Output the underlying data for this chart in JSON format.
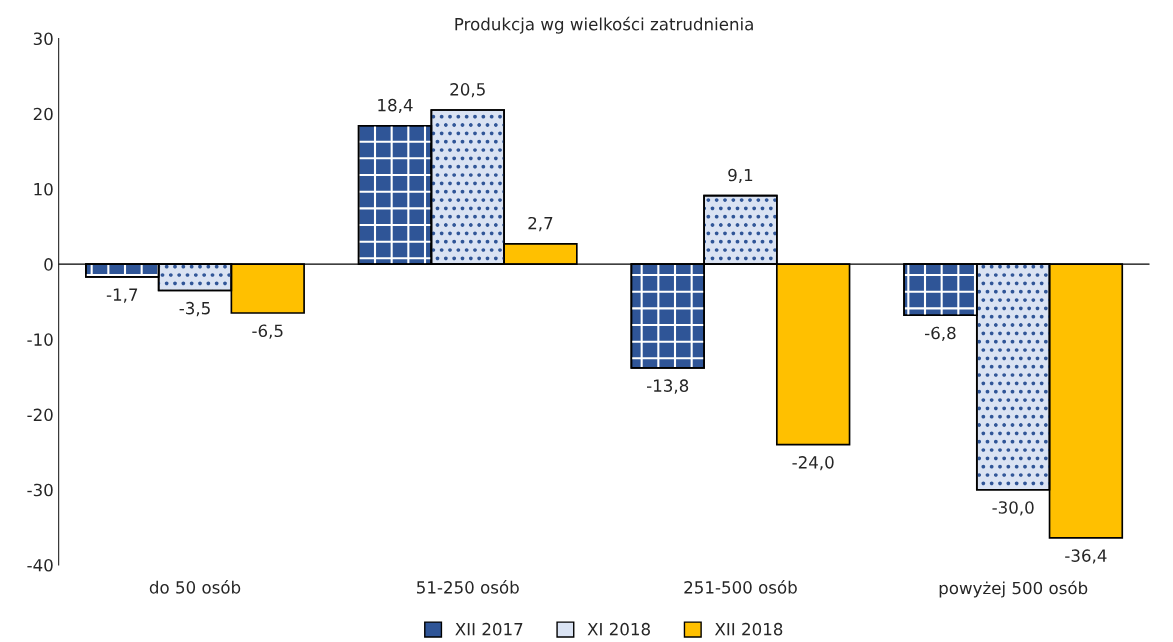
{
  "chart_data": {
    "type": "bar",
    "title": "Produkcja wg wielkości zatrudnienia",
    "categories": [
      "do 50 osób",
      "51-250 osób",
      "251-500 osób",
      "powyżej 500 osób"
    ],
    "series": [
      {
        "name": "XII 2017",
        "color": "#2f5597",
        "values": [
          -1.7,
          18.4,
          -13.8,
          -6.8
        ],
        "value_labels": [
          "-1,7",
          "18,4",
          "-13,8",
          "-6,8"
        ]
      },
      {
        "name": "XI 2018",
        "color": "#dae3f3",
        "values": [
          -3.5,
          20.5,
          9.1,
          -30.0
        ],
        "value_labels": [
          "-3,5",
          "20,5",
          "9,1",
          "-30,0"
        ]
      },
      {
        "name": "XII 2018",
        "color": "#ffc000",
        "values": [
          -6.5,
          2.7,
          -24.0,
          -36.4
        ],
        "value_labels": [
          "-6,5",
          "2,7",
          "-24,0",
          "-36,4"
        ]
      }
    ],
    "ylim": [
      -40,
      30
    ],
    "yticks": [
      -40,
      -30,
      -20,
      -10,
      0,
      10,
      20,
      30
    ],
    "ref_lines": [
      {
        "axis": "y",
        "value": 0,
        "color": "#000000"
      }
    ],
    "legend": "bottom"
  }
}
